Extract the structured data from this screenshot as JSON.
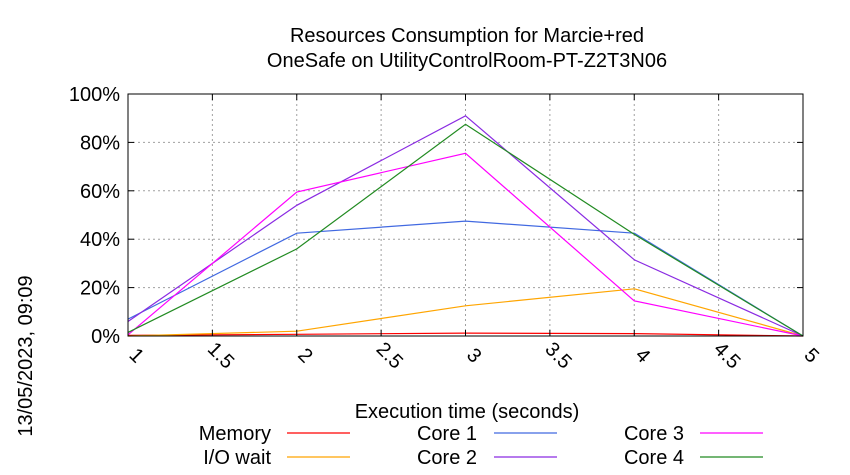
{
  "side_label": "13/05/2023, 09:09",
  "chart_data": {
    "type": "line",
    "title": [
      "Resources Consumption for Marcie+red",
      "OneSafe on UtilityControlRoom-PT-Z2T3N06"
    ],
    "xlabel": "Execution time (seconds)",
    "ylabel": "",
    "xlim": [
      1,
      5
    ],
    "ylim": [
      0,
      100
    ],
    "x_ticks": [
      {
        "value": 1,
        "label": "1"
      },
      {
        "value": 1.5,
        "label": "1.5"
      },
      {
        "value": 2,
        "label": "2"
      },
      {
        "value": 2.5,
        "label": "2.5"
      },
      {
        "value": 3,
        "label": "3"
      },
      {
        "value": 3.5,
        "label": "3.5"
      },
      {
        "value": 4,
        "label": "4"
      },
      {
        "value": 4.5,
        "label": "4.5"
      },
      {
        "value": 5,
        "label": "5"
      }
    ],
    "y_ticks": [
      {
        "value": 0,
        "label": "0%"
      },
      {
        "value": 20,
        "label": "20%"
      },
      {
        "value": 40,
        "label": "40%"
      },
      {
        "value": 60,
        "label": "60%"
      },
      {
        "value": 80,
        "label": "80%"
      },
      {
        "value": 100,
        "label": "100%"
      }
    ],
    "grid": true,
    "legend_position": "bottom",
    "x": [
      1,
      2,
      3,
      4,
      5
    ],
    "series": [
      {
        "name": "Memory",
        "color": "#ff0000",
        "values": [
          0.3,
          0.7,
          1.2,
          1.0,
          0
        ]
      },
      {
        "name": "I/O wait",
        "color": "#ffa500",
        "values": [
          0,
          2,
          12.5,
          19.5,
          0
        ]
      },
      {
        "name": "Core 1",
        "color": "#4169e1",
        "values": [
          7,
          42.5,
          47.5,
          42.5,
          0
        ]
      },
      {
        "name": "Core 2",
        "color": "#8a2be2",
        "values": [
          6,
          54,
          91,
          31.5,
          0
        ]
      },
      {
        "name": "Core 3",
        "color": "#ff00ff",
        "values": [
          0.5,
          59.5,
          75.5,
          14.5,
          0
        ]
      },
      {
        "name": "Core 4",
        "color": "#228b22",
        "values": [
          1.5,
          36,
          87.5,
          42,
          0
        ]
      }
    ]
  }
}
